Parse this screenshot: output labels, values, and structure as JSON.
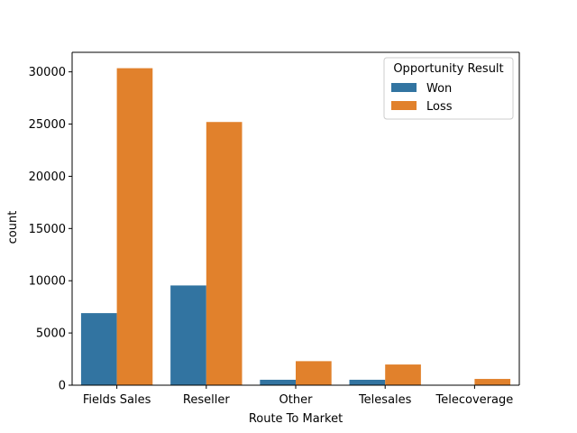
{
  "chart_data": {
    "type": "bar",
    "title": "",
    "xlabel": "Route To Market",
    "ylabel": "count",
    "categories": [
      "Fields Sales",
      "Reseller",
      "Other",
      "Telesales",
      "Telecoverage"
    ],
    "series": [
      {
        "name": "Won",
        "color": "#3274a1",
        "values": [
          6900,
          9550,
          520,
          520,
          20
        ]
      },
      {
        "name": "Loss",
        "color": "#e1812c",
        "values": [
          30350,
          25200,
          2300,
          1980,
          600
        ]
      }
    ],
    "ylim": [
      0,
      31870
    ],
    "yticks": [
      0,
      5000,
      10000,
      15000,
      20000,
      25000,
      30000
    ],
    "legend": {
      "title": "Opportunity Result",
      "placement": "top-right"
    },
    "grid": false
  }
}
